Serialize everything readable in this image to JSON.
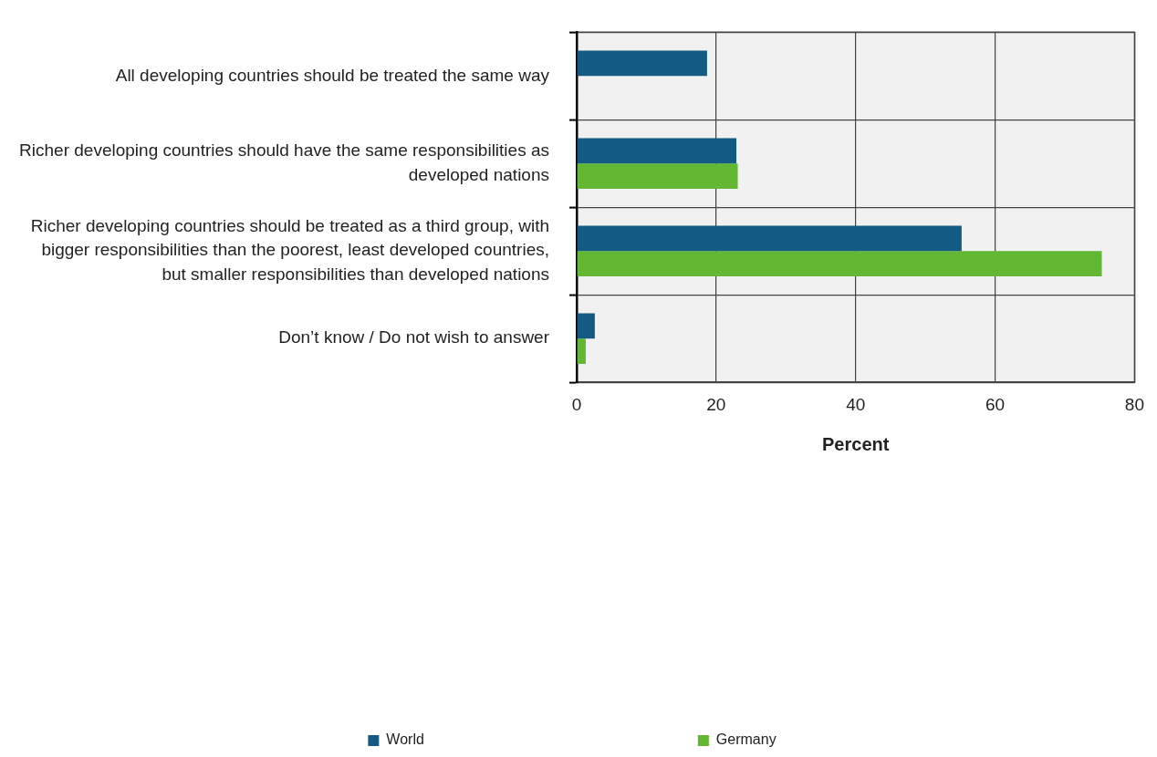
{
  "chart_data": {
    "type": "bar",
    "orientation": "horizontal",
    "xlabel": "Percent",
    "categories": [
      "All developing countries should be treated the same way",
      "Richer developing countries should have the same responsibilities as developed nations",
      "Richer developing countries should be treated as a third group, with bigger responsibilities than the poorest, least developed countries, but smaller responsibilities than developed nations",
      "Don’t know / Do not wish to answer"
    ],
    "series": [
      {
        "name": "World",
        "color": "#135b82",
        "values": [
          18.7,
          22.9,
          55.2,
          2.6
        ]
      },
      {
        "name": "Germany",
        "color": "#62b832",
        "values": [
          null,
          23.1,
          75.3,
          1.3
        ]
      }
    ],
    "xlim": [
      0,
      80
    ],
    "xticks": [
      0,
      20,
      40,
      60,
      80
    ],
    "grid": true,
    "legend": "bottom"
  }
}
